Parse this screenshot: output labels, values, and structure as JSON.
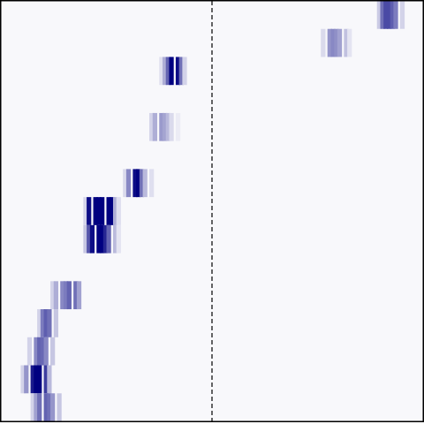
{
  "chart_data": {
    "type": "heatmap",
    "title": "",
    "xlabel": "",
    "ylabel": "",
    "colors": {
      "background": "#f8f8fb",
      "low": "#f8f8fb",
      "high": "#000080",
      "frame": "#000000",
      "reference_line": "#000000"
    },
    "grid": false,
    "legend": "none",
    "x_bins": 128,
    "x_range": [
      0,
      1
    ],
    "reference_x": 0.5,
    "rows": [
      {
        "row": 0,
        "center": 0.922,
        "cols": [
          -0.03,
          -0.022,
          -0.012,
          -0.003,
          0.006,
          0.015,
          0.024
        ],
        "intensities": [
          0.18,
          0.55,
          0.7,
          0.7,
          0.62,
          0.5,
          0.15
        ]
      },
      {
        "row": 1,
        "center": 0.794,
        "cols": [
          -0.03,
          -0.02,
          -0.01,
          0.0,
          0.01,
          0.02,
          0.03
        ],
        "intensities": [
          0.12,
          0.4,
          0.45,
          0.42,
          0.35,
          0.22,
          0.08
        ]
      },
      {
        "row": 2,
        "center": 0.406,
        "cols": [
          -0.03,
          -0.02,
          -0.01,
          0.0,
          0.01,
          0.02,
          0.03
        ],
        "intensities": [
          0.1,
          0.3,
          0.6,
          1.0,
          0.95,
          0.55,
          0.15
        ]
      },
      {
        "row": 4,
        "center": 0.385,
        "cols": [
          -0.03,
          -0.02,
          -0.01,
          0.0,
          0.01,
          0.02,
          0.03
        ],
        "intensities": [
          0.15,
          0.3,
          0.38,
          0.34,
          0.25,
          0.12,
          0.05
        ]
      },
      {
        "row": 6,
        "center": 0.323,
        "cols": [
          -0.03,
          -0.02,
          -0.01,
          0.0,
          0.01,
          0.02,
          0.03
        ],
        "intensities": [
          0.12,
          0.45,
          0.95,
          1.0,
          0.55,
          0.25,
          0.1
        ]
      },
      {
        "row": 7,
        "center": 0.24,
        "cols": [
          -0.04,
          -0.03,
          -0.02,
          -0.01,
          0.0,
          0.01,
          0.02,
          0.03,
          0.04
        ],
        "intensities": [
          0.15,
          0.95,
          1.0,
          1.0,
          1.0,
          1.0,
          1.0,
          0.3,
          0.1
        ]
      },
      {
        "row": 8,
        "center": 0.237,
        "cols": [
          -0.04,
          -0.03,
          -0.02,
          -0.01,
          0.0,
          0.01,
          0.02,
          0.03,
          0.04
        ],
        "intensities": [
          0.2,
          0.65,
          0.95,
          1.0,
          1.0,
          0.85,
          0.6,
          0.25,
          0.08
        ]
      },
      {
        "row": 10,
        "center": 0.152,
        "cols": [
          -0.03,
          -0.02,
          -0.01,
          0.0,
          0.01,
          0.02,
          0.03
        ],
        "intensities": [
          0.15,
          0.3,
          0.45,
          0.5,
          0.6,
          0.55,
          0.35
        ]
      },
      {
        "row": 11,
        "center": 0.106,
        "cols": [
          -0.02,
          -0.01,
          0.0,
          0.01,
          0.02
        ],
        "intensities": [
          0.15,
          0.5,
          0.62,
          0.55,
          0.2
        ]
      },
      {
        "row": 12,
        "center": 0.094,
        "cols": [
          -0.025,
          -0.015,
          -0.005,
          0.005,
          0.015,
          0.025
        ],
        "intensities": [
          0.15,
          0.45,
          0.6,
          0.58,
          0.45,
          0.2
        ]
      },
      {
        "row": 13,
        "center": 0.082,
        "cols": [
          -0.03,
          -0.02,
          -0.01,
          0.0,
          0.01,
          0.02,
          0.03
        ],
        "intensities": [
          0.15,
          0.4,
          0.9,
          1.0,
          1.0,
          0.75,
          0.25
        ]
      },
      {
        "row": 14,
        "center": 0.103,
        "cols": [
          -0.03,
          -0.02,
          -0.01,
          0.0,
          0.01,
          0.02,
          0.03
        ],
        "intensities": [
          0.15,
          0.35,
          0.55,
          0.6,
          0.55,
          0.4,
          0.2
        ]
      }
    ],
    "n_rows": 15
  }
}
